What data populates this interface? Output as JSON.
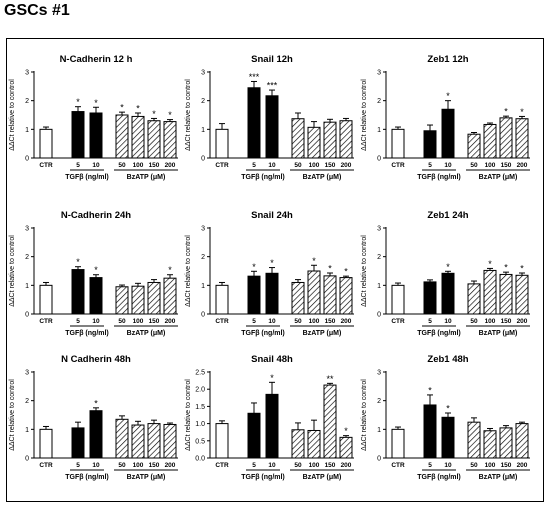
{
  "figure_title": "GSCs #1",
  "ylabel": "ΔΔCt relative to control",
  "ctr_label": "CTR",
  "group1_title": "TGFβ (ng/ml)",
  "group2_title": "BzATP (μM)",
  "group1_ticks": [
    "5",
    "10"
  ],
  "group2_ticks": [
    "50",
    "100",
    "150",
    "200"
  ],
  "chart_data": [
    {
      "type": "bar",
      "title": "N-Cadherin 12 h",
      "ylim": [
        0,
        3
      ],
      "yticks": [
        "0",
        "1",
        "2",
        "3"
      ],
      "values": [
        1.0,
        1.62,
        1.57,
        1.5,
        1.45,
        1.3,
        1.27
      ],
      "errors": [
        0.08,
        0.17,
        0.2,
        0.1,
        0.12,
        0.08,
        0.07
      ],
      "annotations": [
        "",
        "*",
        "*",
        "*",
        "*",
        "*",
        "*"
      ]
    },
    {
      "type": "bar",
      "title": "Snail 12h",
      "ylim": [
        0,
        3
      ],
      "yticks": [
        "0",
        "1",
        "2",
        "3"
      ],
      "values": [
        1.0,
        2.45,
        2.17,
        1.37,
        1.07,
        1.25,
        1.3
      ],
      "errors": [
        0.2,
        0.22,
        0.2,
        0.2,
        0.2,
        0.1,
        0.08
      ],
      "annotations": [
        "",
        "***",
        "***",
        "",
        "",
        "",
        ""
      ]
    },
    {
      "type": "bar",
      "title": "Zeb1 12h",
      "ylim": [
        0,
        3
      ],
      "yticks": [
        "0",
        "1",
        "2",
        "3"
      ],
      "values": [
        1.0,
        0.95,
        1.7,
        0.83,
        1.17,
        1.4,
        1.37
      ],
      "errors": [
        0.08,
        0.2,
        0.3,
        0.06,
        0.05,
        0.06,
        0.08
      ],
      "annotations": [
        "",
        "",
        "*",
        "",
        "",
        "*",
        "*"
      ]
    },
    {
      "type": "bar",
      "title": "N-Cadherin 24h",
      "ylim": [
        0,
        3
      ],
      "yticks": [
        "0",
        "1",
        "2",
        "3"
      ],
      "values": [
        1.0,
        1.55,
        1.27,
        0.95,
        0.97,
        1.1,
        1.25
      ],
      "errors": [
        0.1,
        0.1,
        0.1,
        0.06,
        0.1,
        0.1,
        0.12
      ],
      "annotations": [
        "",
        "*",
        "*",
        "",
        "",
        "",
        "*"
      ]
    },
    {
      "type": "bar",
      "title": "Snail 24h",
      "ylim": [
        0,
        3
      ],
      "yticks": [
        "0",
        "1",
        "2",
        "3"
      ],
      "values": [
        1.0,
        1.32,
        1.42,
        1.1,
        1.5,
        1.33,
        1.27
      ],
      "errors": [
        0.1,
        0.17,
        0.2,
        0.1,
        0.2,
        0.1,
        0.05
      ],
      "annotations": [
        "",
        "*",
        "*",
        "",
        "*",
        "*",
        "*"
      ]
    },
    {
      "type": "bar",
      "title": "Zeb1 24h",
      "ylim": [
        0,
        3
      ],
      "yticks": [
        "0",
        "1",
        "2",
        "3"
      ],
      "values": [
        1.0,
        1.12,
        1.42,
        1.05,
        1.52,
        1.38,
        1.35
      ],
      "errors": [
        0.08,
        0.07,
        0.07,
        0.1,
        0.07,
        0.08,
        0.08
      ],
      "annotations": [
        "",
        "",
        "*",
        "",
        "*",
        "*",
        "*"
      ]
    },
    {
      "type": "bar",
      "title": "N Cadherin 48h",
      "ylim": [
        0,
        3
      ],
      "yticks": [
        "0",
        "1",
        "2",
        "3"
      ],
      "values": [
        1.0,
        1.05,
        1.65,
        1.35,
        1.15,
        1.2,
        1.17
      ],
      "errors": [
        0.1,
        0.2,
        0.1,
        0.12,
        0.13,
        0.12,
        0.05
      ],
      "annotations": [
        "",
        "",
        "*",
        "",
        "",
        "",
        ""
      ]
    },
    {
      "type": "bar",
      "title": "Snail 48h",
      "ylim": [
        0,
        2.5
      ],
      "yticks": [
        "0.0",
        "0.5",
        "1.0",
        "1.5",
        "2.0",
        "2.5"
      ],
      "values": [
        1.0,
        1.3,
        1.85,
        0.82,
        0.8,
        2.12,
        0.6
      ],
      "errors": [
        0.08,
        0.3,
        0.35,
        0.2,
        0.3,
        0.05,
        0.05
      ],
      "annotations": [
        "",
        "",
        "*",
        "",
        "",
        "**",
        "*"
      ]
    },
    {
      "type": "bar",
      "title": "Zeb1 48h",
      "ylim": [
        0,
        3
      ],
      "yticks": [
        "0",
        "1",
        "2",
        "3"
      ],
      "values": [
        1.0,
        1.85,
        1.42,
        1.25,
        0.95,
        1.05,
        1.2
      ],
      "errors": [
        0.08,
        0.35,
        0.15,
        0.15,
        0.08,
        0.08,
        0.05
      ],
      "annotations": [
        "",
        "*",
        "*",
        "",
        "",
        "",
        ""
      ]
    }
  ]
}
